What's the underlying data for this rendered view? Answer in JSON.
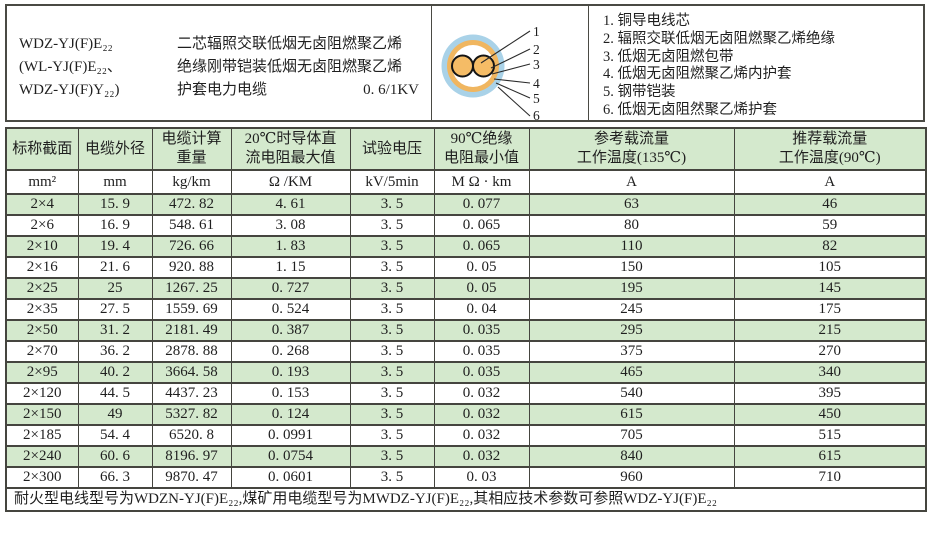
{
  "header": {
    "models": [
      "WDZ-YJ(F)E₂₂",
      "(WL-YJ(F)E₂₂、",
      "WDZ-YJ(F)Y₂₂)"
    ],
    "description_lines": [
      "二芯辐照交联低烟无卤阻燃聚乙烯",
      "绝缘刚带铠装低烟无卤阻燃聚乙烯",
      "护套电力电缆"
    ],
    "voltage": "0. 6/1KV",
    "diagram": {
      "callouts": [
        "1",
        "2",
        "3",
        "4",
        "5",
        "6"
      ],
      "colors": {
        "outer_sheath": "#a9d2e8",
        "armor_ring": "#f0b660",
        "inner_area": "#ffffff",
        "conductor": "#f5bc66",
        "outline": "#141414"
      }
    },
    "legend_items": [
      "1. 铜导电线芯",
      "2. 辐照交联低烟无卤阻燃聚乙烯绝缘",
      "3. 低烟无卤阻燃包带",
      "4. 低烟无卤阻燃聚乙烯内护套",
      "5. 钢带铠装",
      "6. 低烟无卤阻然聚乙烯护套"
    ]
  },
  "table": {
    "headers": [
      "标称截面",
      "电缆外径",
      "电缆计算\n重量",
      "20℃时导体直\n流电阻最大值",
      "试验电压",
      "90℃绝缘\n电阻最小值",
      "参考载流量\n工作温度(135℃)",
      "推荐载流量\n工作温度(90℃)"
    ],
    "units": [
      "mm²",
      "mm",
      "kg/km",
      "Ω /KM",
      "kV/5min",
      "M Ω · km",
      "A",
      "A"
    ],
    "rows": [
      [
        "2×4",
        "15. 9",
        "472. 82",
        "4. 61",
        "3. 5",
        "0. 077",
        "63",
        "46"
      ],
      [
        "2×6",
        "16. 9",
        "548. 61",
        "3. 08",
        "3. 5",
        "0. 065",
        "80",
        "59"
      ],
      [
        "2×10",
        "19. 4",
        "726. 66",
        "1. 83",
        "3. 5",
        "0. 065",
        "110",
        "82"
      ],
      [
        "2×16",
        "21. 6",
        "920. 88",
        "1. 15",
        "3. 5",
        "0. 05",
        "150",
        "105"
      ],
      [
        "2×25",
        "25",
        "1267. 25",
        "0. 727",
        "3. 5",
        "0. 05",
        "195",
        "145"
      ],
      [
        "2×35",
        "27. 5",
        "1559. 69",
        "0. 524",
        "3. 5",
        "0. 04",
        "245",
        "175"
      ],
      [
        "2×50",
        "31. 2",
        "2181. 49",
        "0. 387",
        "3. 5",
        "0. 035",
        "295",
        "215"
      ],
      [
        "2×70",
        "36. 2",
        "2878. 88",
        "0. 268",
        "3. 5",
        "0. 035",
        "375",
        "270"
      ],
      [
        "2×95",
        "40. 2",
        "3664. 58",
        "0. 193",
        "3. 5",
        "0. 035",
        "465",
        "340"
      ],
      [
        "2×120",
        "44. 5",
        "4437. 23",
        "0. 153",
        "3. 5",
        "0. 032",
        "540",
        "395"
      ],
      [
        "2×150",
        "49",
        "5327. 82",
        "0. 124",
        "3. 5",
        "0. 032",
        "615",
        "450"
      ],
      [
        "2×185",
        "54. 4",
        "6520. 8",
        "0. 0991",
        "3. 5",
        "0. 032",
        "705",
        "515"
      ],
      [
        "2×240",
        "60. 6",
        "8196. 97",
        "0. 0754",
        "3. 5",
        "0. 032",
        "840",
        "615"
      ],
      [
        "2×300",
        "66. 3",
        "9870. 47",
        "0. 0601",
        "3. 5",
        "0. 03",
        "960",
        "710"
      ]
    ],
    "footer": "耐火型电线型号为WDZN-YJ(F)E₂₂,煤矿用电缆型号为MWDZ-YJ(F)E₂₂,其相应技术参数可参照WDZ-YJ(F)E₂₂"
  },
  "colors": {
    "row_green": "#d4e9cd",
    "grid_border": "#45453f"
  }
}
